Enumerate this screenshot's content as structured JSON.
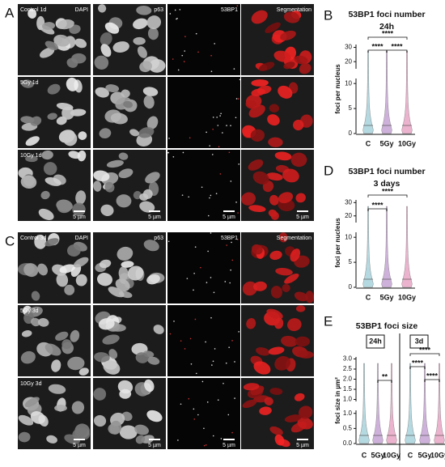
{
  "panel_A": {
    "letter": "A",
    "rows": [
      "Control 1d",
      "5Gy 1d",
      "10Gy 1d"
    ],
    "channels": [
      "DAPI",
      "p63",
      "53BP1",
      "Segmentation"
    ],
    "scale_bar": "5 µm"
  },
  "panel_C": {
    "letter": "C",
    "rows": [
      "Control 3d",
      "5Gy 3d",
      "10Gy 3d"
    ],
    "channels": [
      "DAPI",
      "p63",
      "53BP1",
      "Segmentation"
    ],
    "scale_bar": "5 µm"
  },
  "chart_data": [
    {
      "letter": "B",
      "type": "violin",
      "title": "53BP1 foci number",
      "subtitle": "24h",
      "ylabel": "foci per nucleus",
      "categories": [
        "C",
        "5Gy",
        "10Gy"
      ],
      "colors": [
        "#a9d3dc",
        "#c6a4d4",
        "#e9a6c6"
      ],
      "axis_segments": [
        {
          "ylim": [
            0,
            11
          ],
          "yticks": [
            0,
            5,
            10
          ]
        },
        {
          "ylim": [
            15,
            32
          ],
          "yticks": [
            20,
            30
          ]
        }
      ],
      "significance": [
        "****",
        "****",
        "****"
      ]
    },
    {
      "letter": "D",
      "type": "violin",
      "title": "53BP1 foci number",
      "subtitle": "3 days",
      "ylabel": "foci per nucleus",
      "categories": [
        "C",
        "5Gy",
        "10Gy"
      ],
      "colors": [
        "#a9d3dc",
        "#c6a4d4",
        "#e9a6c6"
      ],
      "axis_segments": [
        {
          "ylim": [
            0,
            11
          ],
          "yticks": [
            0,
            5,
            10
          ]
        },
        {
          "ylim": [
            15,
            32
          ],
          "yticks": [
            20,
            30
          ]
        }
      ],
      "significance": [
        "****",
        "****"
      ]
    },
    {
      "letter": "E",
      "type": "violin",
      "title": "53BP1 foci size",
      "groups": [
        "24h",
        "3d"
      ],
      "ylabel": "foci size in µm²",
      "categories": [
        "C",
        "5Gy",
        "10Gy",
        "C",
        "5Gy",
        "10Gy"
      ],
      "colors": [
        "#a9d3dc",
        "#c6a4d4",
        "#e9a6c6",
        "#a9d3dc",
        "#c6a4d4",
        "#e9a6c6"
      ],
      "axis_segments": [
        {
          "ylim": [
            0,
            1.1
          ],
          "yticks": [
            {
              "value": 0,
              "label": "0.0"
            },
            0.5,
            {
              "value": 1,
              "label": "1.0"
            }
          ]
        },
        {
          "ylim": [
            0.9,
            3.1
          ],
          "yticks": [
            {
              "value": 1,
              "label": "1.0"
            },
            1.5,
            {
              "value": 2,
              "label": "2.0"
            },
            2.5,
            {
              "value": 3,
              "label": "3.0"
            }
          ]
        }
      ],
      "significance": [
        "**",
        "****",
        "****",
        "****"
      ]
    }
  ]
}
